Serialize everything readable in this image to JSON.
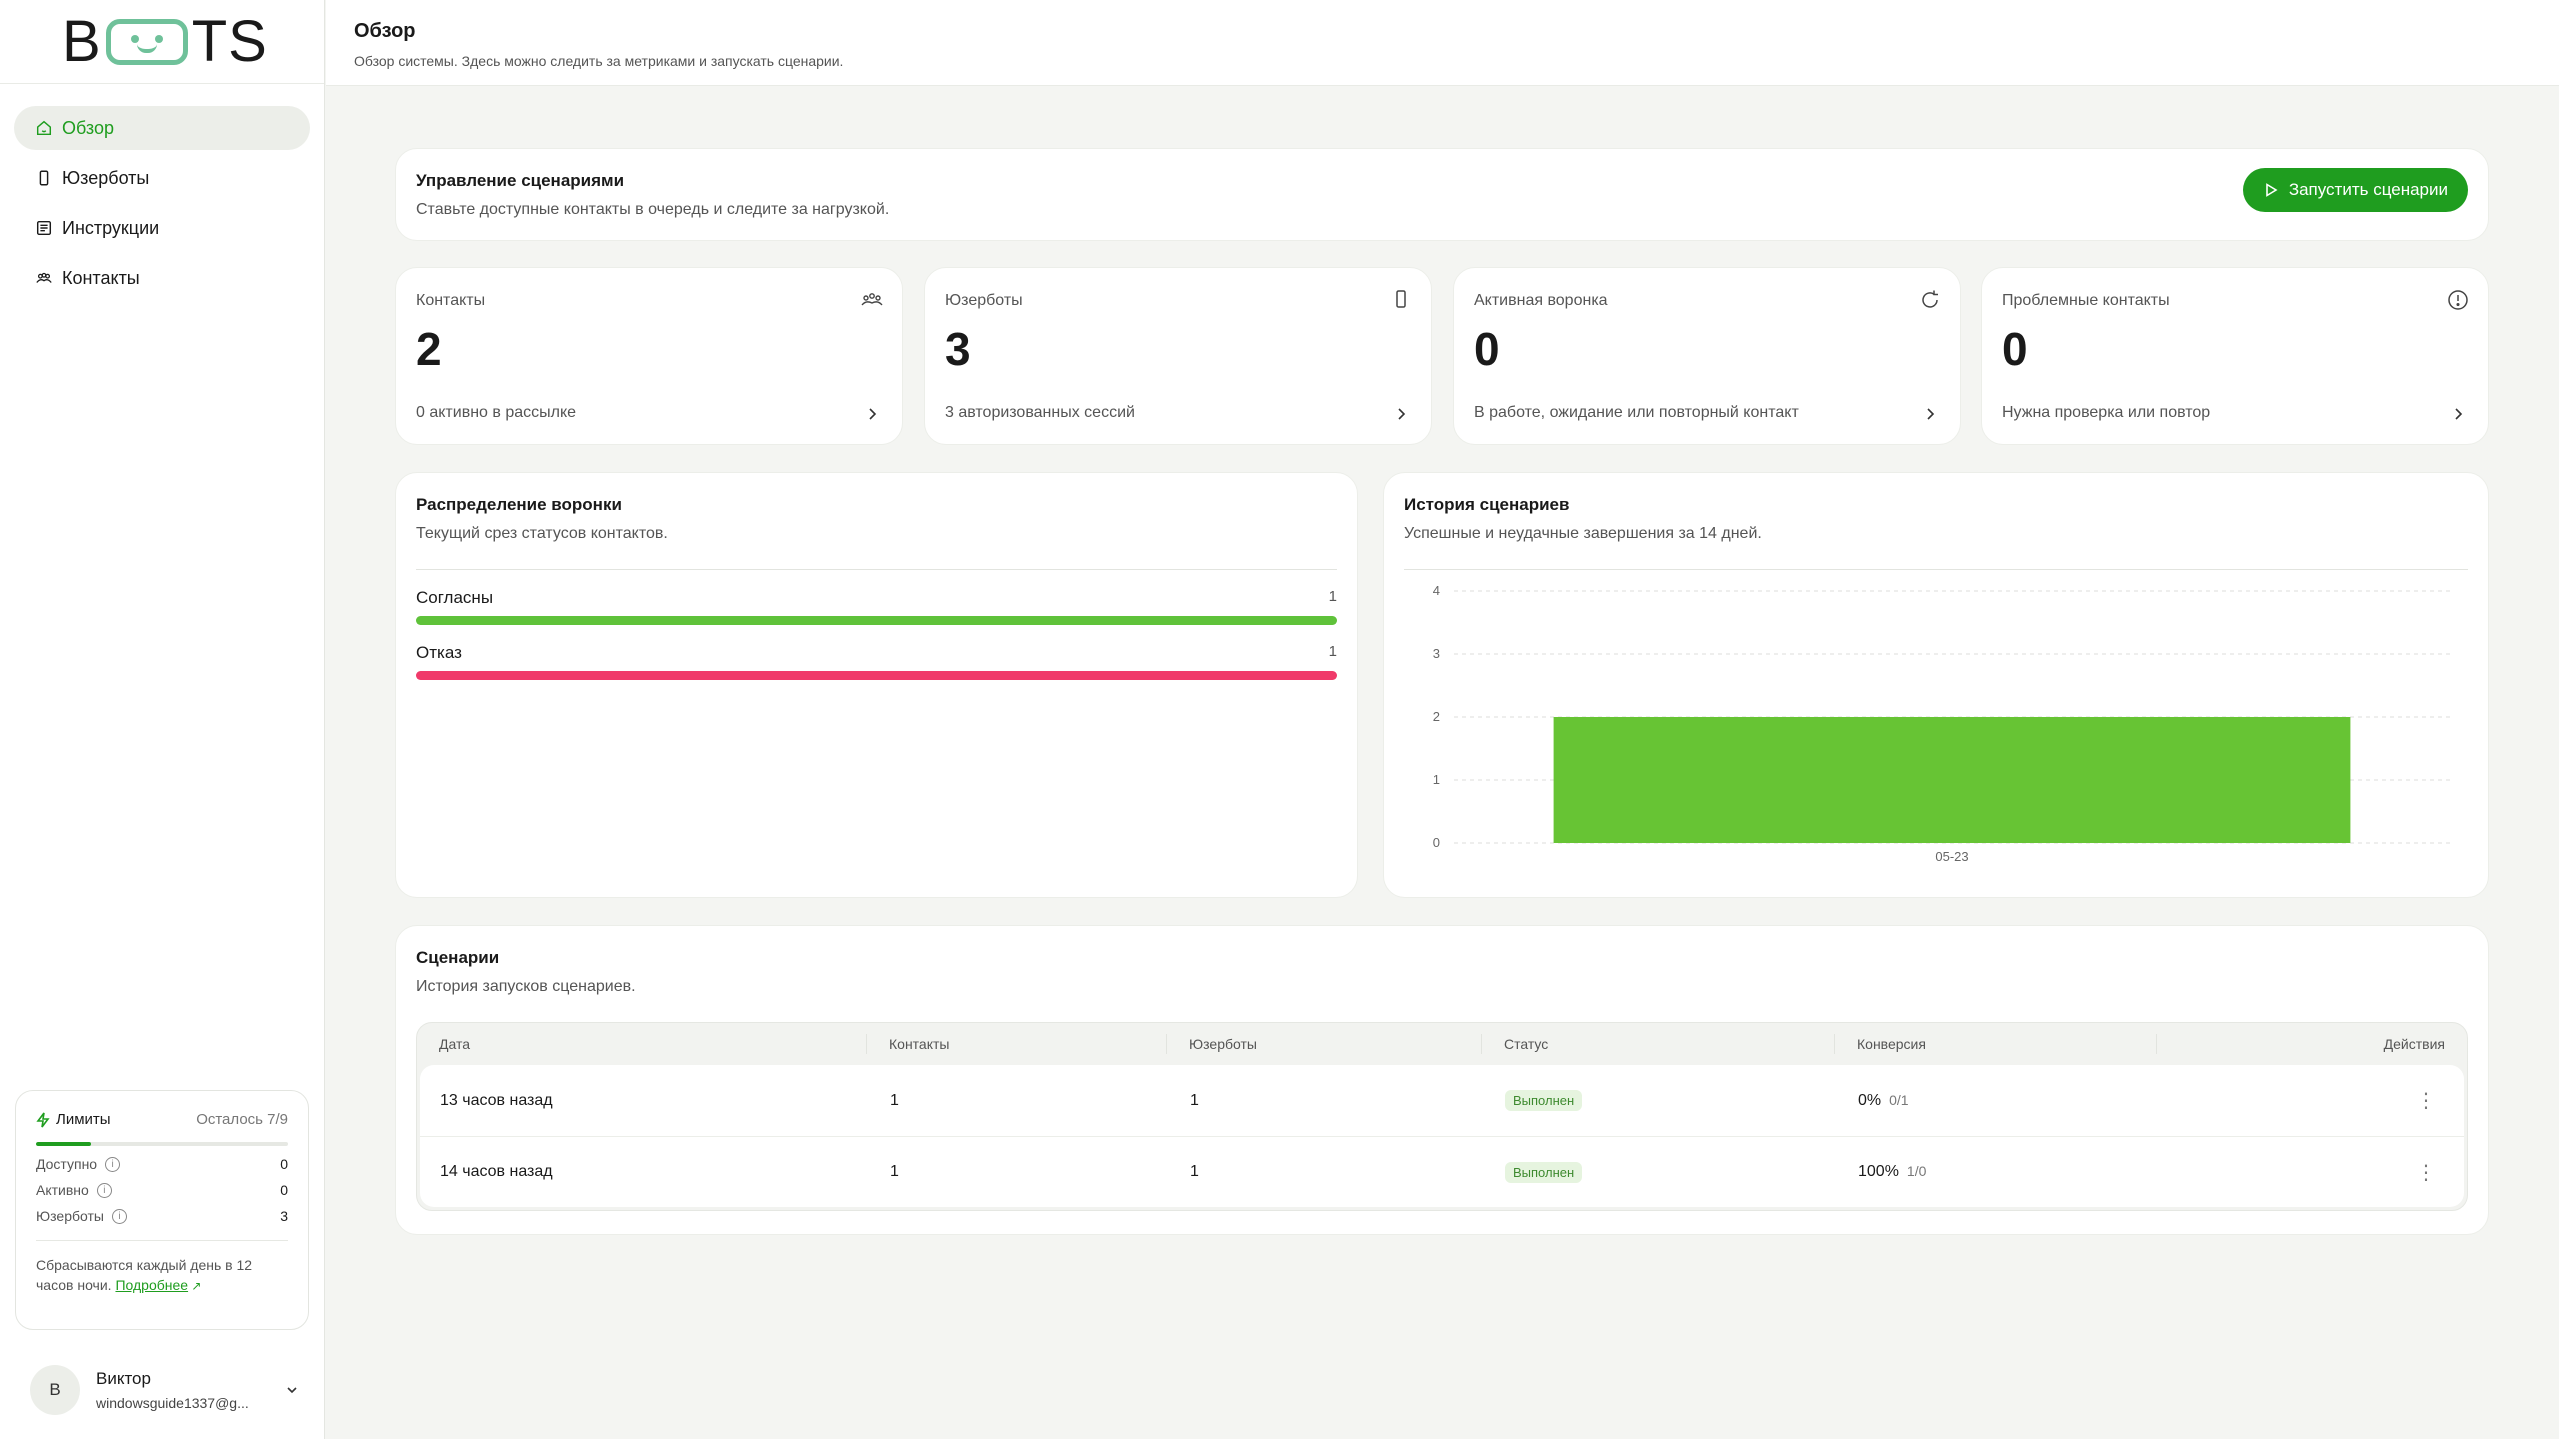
{
  "logo": {
    "before": "B",
    "after": "TS"
  },
  "nav": [
    {
      "label": "Обзор",
      "icon": "home-icon",
      "active": true
    },
    {
      "label": "Юзерботы",
      "icon": "phone-icon",
      "active": false
    },
    {
      "label": "Инструкции",
      "icon": "document-icon",
      "active": false
    },
    {
      "label": "Контакты",
      "icon": "users-icon",
      "active": false
    }
  ],
  "limits": {
    "title": "Лимиты",
    "remaining": "Осталось 7/9",
    "progress": 0.22,
    "rows": [
      {
        "label": "Доступно",
        "value": "0"
      },
      {
        "label": "Активно",
        "value": "0"
      },
      {
        "label": "Юзерботы",
        "value": "3"
      }
    ],
    "note": "Сбрасываются каждый день в 12 часов ночи.",
    "link": "Подробнее"
  },
  "user": {
    "initial": "В",
    "name": "Виктор",
    "email": "windowsguide1337@g..."
  },
  "header": {
    "title": "Обзор",
    "subtitle": "Обзор системы. Здесь можно следить за метриками и запускать сценарии."
  },
  "management": {
    "title": "Управление сценариями",
    "subtitle": "Ставьте доступные контакты в очередь и следите за нагрузкой.",
    "run_label": "Запустить сценарии"
  },
  "stats": [
    {
      "label": "Контакты",
      "value": "2",
      "foot": "0 активно в рассылке",
      "icon": "users-icon"
    },
    {
      "label": "Юзерботы",
      "value": "3",
      "foot": "3 авторизованных сессий",
      "icon": "phone-icon"
    },
    {
      "label": "Активная воронка",
      "value": "0",
      "foot": "В работе, ожидание или повторный контакт",
      "icon": "refresh-icon"
    },
    {
      "label": "Проблемные контакты",
      "value": "0",
      "foot": "Нужна проверка или повтор",
      "icon": "alert-icon"
    }
  ],
  "funnel": {
    "title": "Распределение воронки",
    "subtitle": "Текущий срез статусов контактов.",
    "rows": [
      {
        "label": "Согласны",
        "value": "1",
        "color": "#5fc23a"
      },
      {
        "label": "Отказ",
        "value": "1",
        "color": "#f03a6a"
      }
    ]
  },
  "history": {
    "title": "История сценариев",
    "subtitle": "Успешные и неудачные завершения за 14 дней."
  },
  "chart_data": {
    "type": "bar",
    "categories": [
      "05-23"
    ],
    "values": [
      2
    ],
    "ylim": [
      0,
      4
    ],
    "yticks": [
      "0",
      "1",
      "2",
      "3",
      "4"
    ],
    "grid": true,
    "color": "#67c434"
  },
  "scenarios": {
    "title": "Сценарии",
    "subtitle": "История запусков сценариев.",
    "columns": [
      "Дата",
      "Контакты",
      "Юзерботы",
      "Статус",
      "Конверсия",
      "Действия"
    ],
    "rows": [
      {
        "date": "13 часов назад",
        "contacts": "1",
        "userbots": "1",
        "status": "Выполнен",
        "conv_pct": "0%",
        "conv_frac": "0/1"
      },
      {
        "date": "14 часов назад",
        "contacts": "1",
        "userbots": "1",
        "status": "Выполнен",
        "conv_pct": "100%",
        "conv_frac": "1/0"
      }
    ]
  }
}
